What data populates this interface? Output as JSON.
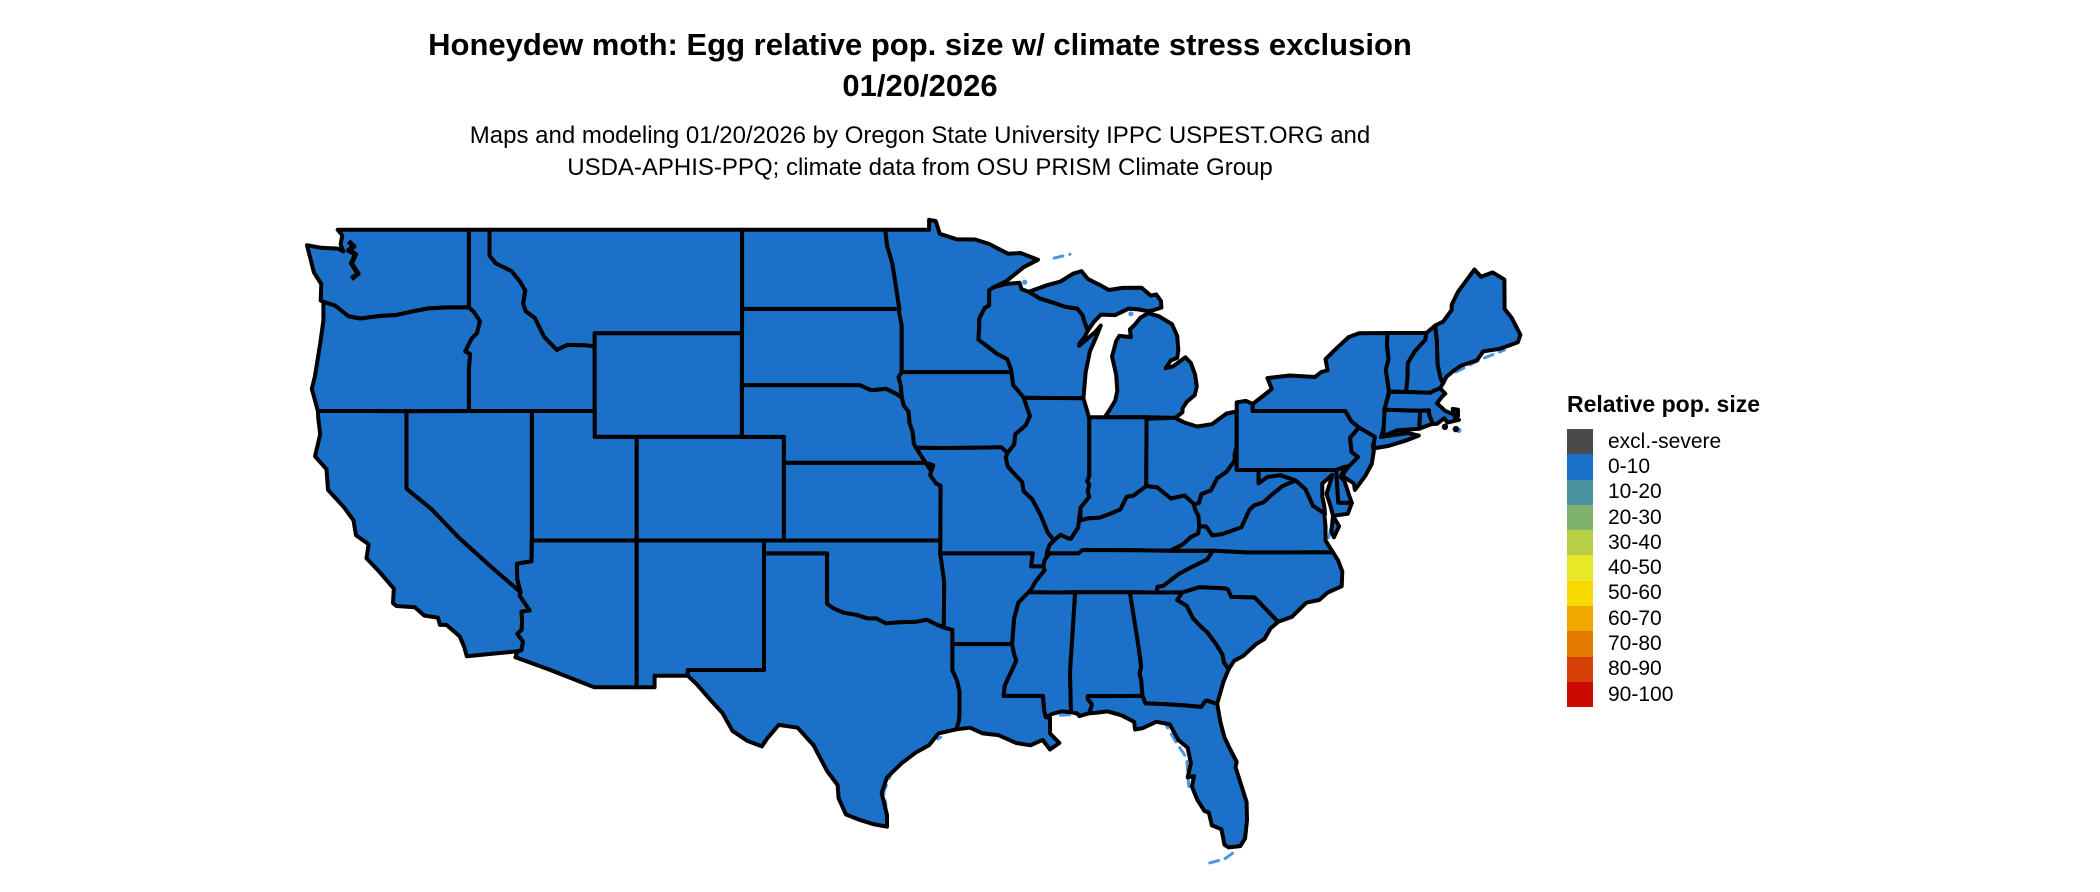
{
  "title": {
    "line1": "Honeydew moth: Egg relative pop. size w/ climate stress exclusion",
    "line2": "01/20/2026"
  },
  "subtitle": {
    "line1": "Maps and modeling 01/20/2026 by Oregon State University IPPC USPEST.ORG and",
    "line2": "USDA-APHIS-PPQ; climate data from OSU PRISM Climate Group"
  },
  "legend": {
    "title": "Relative pop. size",
    "items": [
      {
        "label": "excl.-severe",
        "color": "#4A4A4A"
      },
      {
        "label": "0-10",
        "color": "#1B70C8"
      },
      {
        "label": "10-20",
        "color": "#4A92A0"
      },
      {
        "label": "20-30",
        "color": "#7DB26F"
      },
      {
        "label": "30-40",
        "color": "#B6CF45"
      },
      {
        "label": "40-50",
        "color": "#E8E829"
      },
      {
        "label": "50-60",
        "color": "#F9DA00"
      },
      {
        "label": "60-70",
        "color": "#F0A800"
      },
      {
        "label": "70-80",
        "color": "#E27A00"
      },
      {
        "label": "80-90",
        "color": "#D64109"
      },
      {
        "label": "90-100",
        "color": "#CB0A02"
      }
    ]
  },
  "chart_data": {
    "type": "choropleth",
    "region": "Continental United States (lower 48 states)",
    "categories": [
      "excl.-severe",
      "0-10",
      "10-20",
      "20-30",
      "30-40",
      "40-50",
      "50-60",
      "60-70",
      "70-80",
      "80-90",
      "90-100"
    ],
    "all_states_value": "0-10",
    "map_fill_color": "#1B70C8",
    "state_border_color": "#000000",
    "coastal_water_color": "#4A97E0"
  }
}
